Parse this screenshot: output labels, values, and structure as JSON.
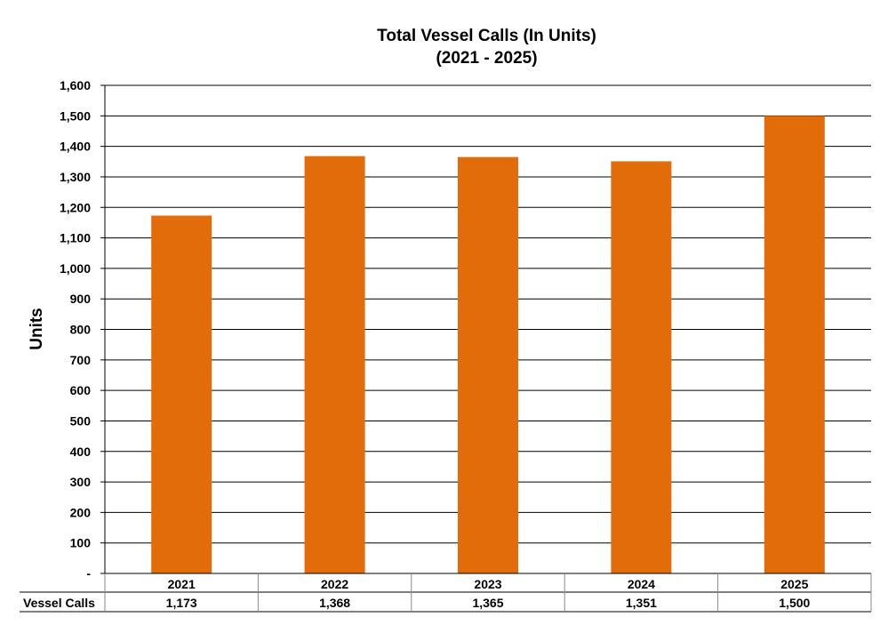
{
  "chart_data": {
    "type": "bar",
    "title": "Total Vessel Calls (In Units)",
    "subtitle": "(2021 - 2025)",
    "ylabel": "Units",
    "xlabel": "",
    "ylim": [
      0,
      1600
    ],
    "yticks": [
      0,
      100,
      200,
      300,
      400,
      500,
      600,
      700,
      800,
      900,
      1000,
      1100,
      1200,
      1300,
      1400,
      1500,
      1600
    ],
    "ytick_labels": [
      "-",
      "100",
      "200",
      "300",
      "400",
      "500",
      "600",
      "700",
      "800",
      "900",
      "1,000",
      "1,100",
      "1,200",
      "1,300",
      "1,400",
      "1,500",
      "1,600"
    ],
    "categories": [
      "2021",
      "2022",
      "2023",
      "2024",
      "2025"
    ],
    "series": [
      {
        "name": "Vessel Calls",
        "values": [
          1173,
          1368,
          1365,
          1351,
          1500
        ],
        "value_labels": [
          "1,173",
          "1,368",
          "1,365",
          "1,351",
          "1,500"
        ],
        "color": "#E36C0A"
      }
    ],
    "grid": true,
    "legend": "none",
    "data_table": true
  }
}
